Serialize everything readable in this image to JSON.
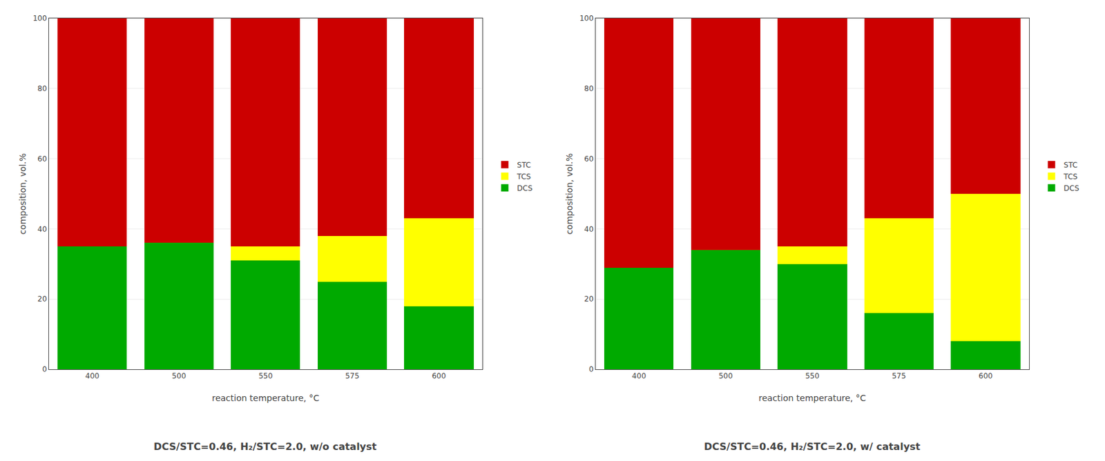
{
  "chart_data": [
    {
      "type": "bar",
      "stacked": true,
      "grid": true,
      "legend": "right",
      "title": "DCS/STC=0.46, H₂/STC=2.0, w/o catalyst",
      "xlabel": "reaction temperature, °C",
      "ylabel": "composition, vol.%",
      "categories": [
        "400",
        "500",
        "550",
        "575",
        "600"
      ],
      "series": [
        {
          "name": "DCS",
          "color": "#00aa00",
          "values": [
            35,
            36,
            31,
            25,
            18
          ]
        },
        {
          "name": "TCS",
          "color": "#ffff00",
          "values": [
            0,
            0,
            4,
            13,
            25
          ]
        },
        {
          "name": "STC",
          "color": "#cc0000",
          "values": [
            65,
            64,
            65,
            62,
            57
          ]
        }
      ],
      "ylim": [
        0,
        100
      ],
      "yticks": [
        0,
        20,
        40,
        60,
        80,
        100
      ]
    },
    {
      "type": "bar",
      "stacked": true,
      "grid": true,
      "legend": "right",
      "title": "DCS/STC=0.46, H₂/STC=2.0, w/ catalyst",
      "xlabel": "reaction temperature, °C",
      "ylabel": "composition, vol.%",
      "categories": [
        "400",
        "500",
        "550",
        "575",
        "600"
      ],
      "series": [
        {
          "name": "DCS",
          "color": "#00aa00",
          "values": [
            29,
            34,
            30,
            16,
            8
          ]
        },
        {
          "name": "TCS",
          "color": "#ffff00",
          "values": [
            0,
            0,
            5,
            27,
            42
          ]
        },
        {
          "name": "STC",
          "color": "#cc0000",
          "values": [
            71,
            66,
            65,
            57,
            50
          ]
        }
      ],
      "ylim": [
        0,
        100
      ],
      "yticks": [
        0,
        20,
        40,
        60,
        80,
        100
      ]
    }
  ]
}
